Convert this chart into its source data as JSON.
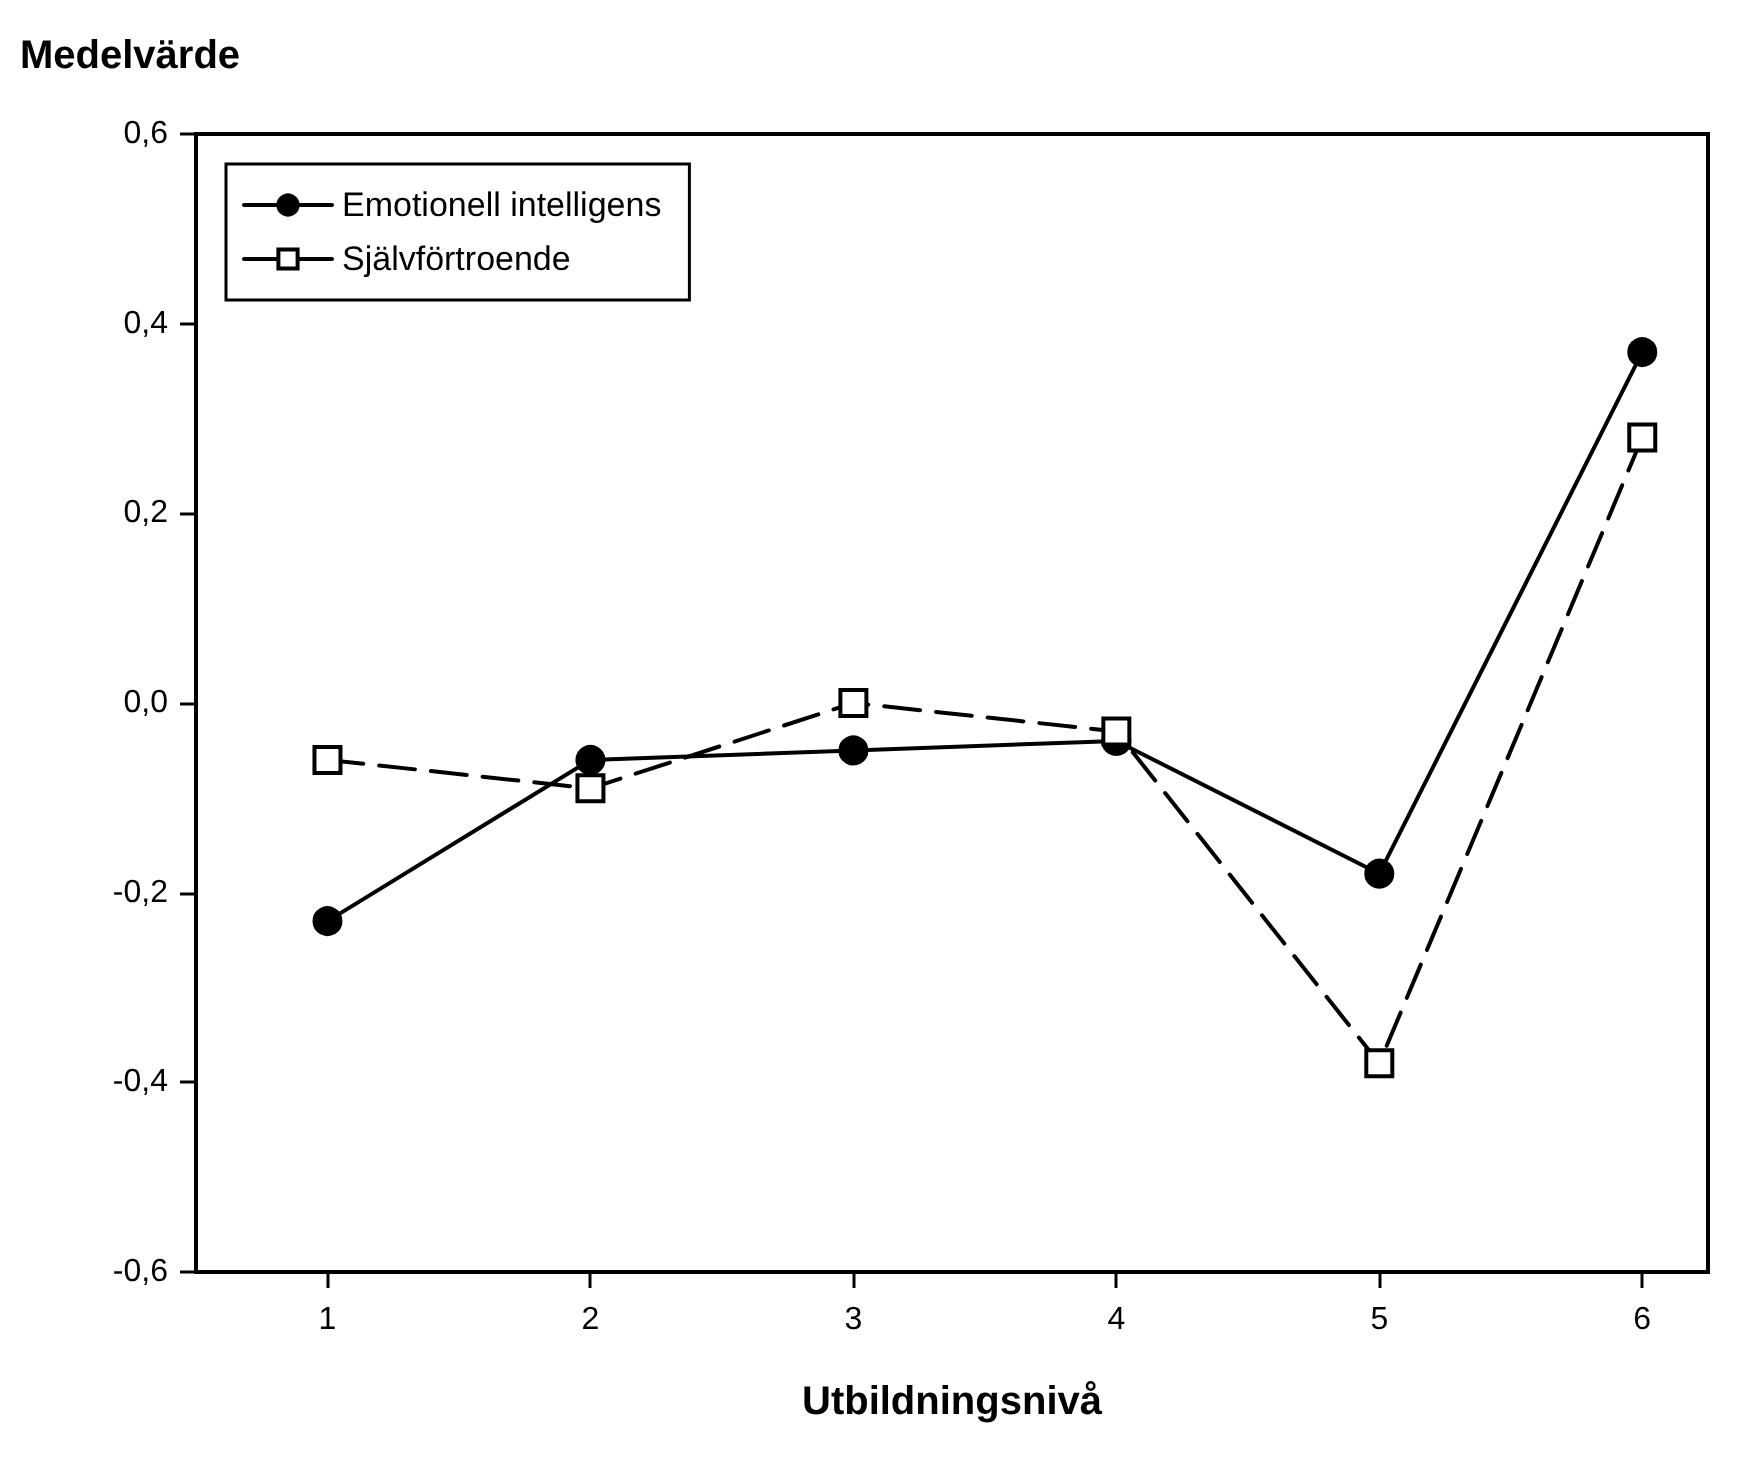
{
  "chart_data": {
    "type": "line",
    "xlabel": "Utbildningsnivå",
    "ylabel": "Medelvärde",
    "x": [
      1,
      2,
      3,
      4,
      5,
      6
    ],
    "series": [
      {
        "name": "Emotionell intelligens",
        "color": "#000000",
        "marker": "circle",
        "line_style": "solid",
        "values": [
          -0.23,
          -0.06,
          -0.05,
          -0.04,
          -0.18,
          0.37
        ]
      },
      {
        "name": "Självförtroende",
        "color": "#000000",
        "marker": "square",
        "line_style": "dashed",
        "values": [
          -0.06,
          -0.09,
          0.0,
          -0.03,
          -0.38,
          0.28
        ]
      }
    ],
    "xlim": [
      0.5,
      6.25
    ],
    "xticks": [
      1,
      2,
      3,
      4,
      5,
      6
    ],
    "ylim": [
      -0.6,
      0.6
    ],
    "yticks": [
      {
        "value": -0.6,
        "label": "-0,6"
      },
      {
        "value": -0.4,
        "label": "-0,4"
      },
      {
        "value": -0.2,
        "label": "-0,2"
      },
      {
        "value": 0,
        "label": "0,0"
      },
      {
        "value": 0.2,
        "label": "0,2"
      },
      {
        "value": 0.4,
        "label": "0,4"
      },
      {
        "value": 0.6,
        "label": "0,6"
      }
    ],
    "grid": false,
    "legend": "top left"
  }
}
